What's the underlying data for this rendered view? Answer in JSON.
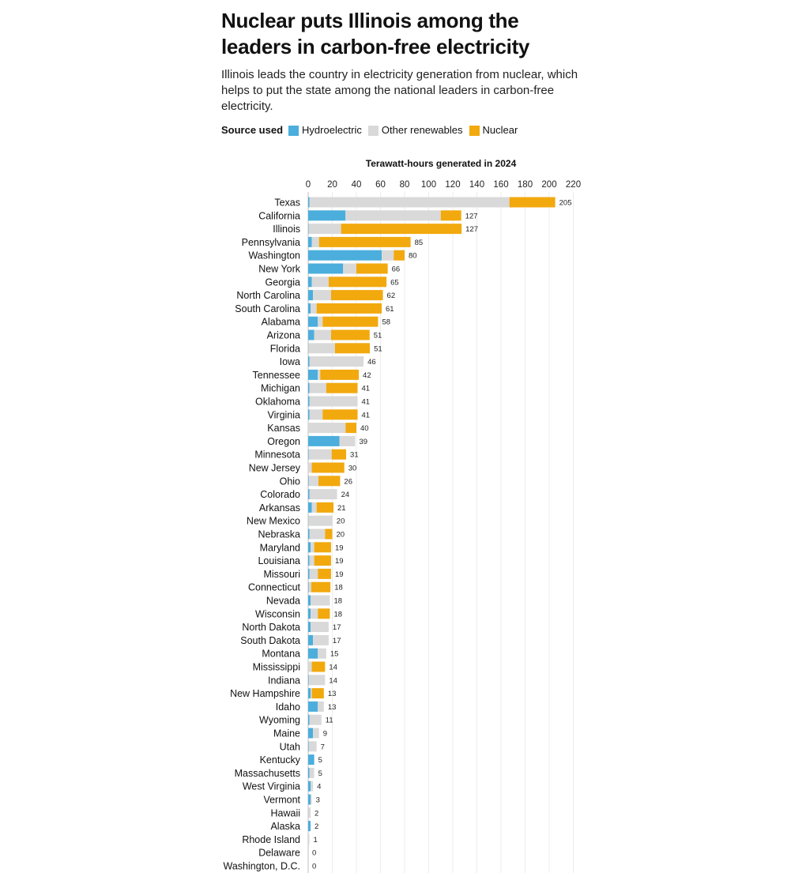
{
  "header": {
    "title_line1": "Nuclear puts Illinois among the",
    "title_line2": "leaders in carbon-free electricity",
    "subtitle": "Illinois leads the country in electricity generation from nuclear, which helps to put the state among the national leaders in carbon-free electricity."
  },
  "legend": {
    "title": "Source used",
    "items": [
      {
        "label": "Hydroelectric",
        "color": "#4BAEDC"
      },
      {
        "label": "Other renewables",
        "color": "#D9D9D9"
      },
      {
        "label": "Nuclear",
        "color": "#F2A90E"
      }
    ]
  },
  "chart_data": {
    "type": "bar",
    "orientation": "horizontal",
    "stacked": true,
    "title": "Nuclear puts Illinois among the leaders in carbon-free electricity",
    "xlabel": "Terawatt-hours generated in 2024",
    "xlim": [
      0,
      220
    ],
    "xticks": [
      0,
      20,
      40,
      60,
      80,
      100,
      120,
      140,
      160,
      180,
      200,
      220
    ],
    "grid": true,
    "legend_placement": "top",
    "categories": [
      "Texas",
      "California",
      "Illinois",
      "Pennsylvania",
      "Washington",
      "New York",
      "Georgia",
      "North Carolina",
      "South Carolina",
      "Alabama",
      "Arizona",
      "Florida",
      "Iowa",
      "Tennessee",
      "Michigan",
      "Oklahoma",
      "Virginia",
      "Kansas",
      "Oregon",
      "Minnesota",
      "New Jersey",
      "Ohio",
      "Colorado",
      "Arkansas",
      "New Mexico",
      "Nebraska",
      "Maryland",
      "Louisiana",
      "Missouri",
      "Connecticut",
      "Nevada",
      "Wisconsin",
      "North Dakota",
      "South Dakota",
      "Montana",
      "Mississippi",
      "Indiana",
      "New Hampshire",
      "Idaho",
      "Wyoming",
      "Maine",
      "Utah",
      "Kentucky",
      "Massachusetts",
      "West Virginia",
      "Vermont",
      "Hawaii",
      "Alaska",
      "Rhode Island",
      "Delaware",
      "Washington, D.C."
    ],
    "series": [
      {
        "name": "Hydroelectric",
        "color": "#4BAEDC",
        "values": [
          1,
          31,
          0.3,
          3,
          61,
          29,
          3,
          4,
          2,
          8,
          5,
          0.2,
          1,
          8,
          1,
          1,
          1,
          0,
          26,
          0.5,
          0,
          0.5,
          1,
          3,
          0.2,
          1,
          2,
          1,
          1,
          0.5,
          2,
          2,
          2,
          4,
          8,
          0,
          0.5,
          2,
          8,
          1,
          4,
          0.5,
          5,
          1,
          2,
          2,
          0.1,
          2,
          0,
          0,
          0
        ]
      },
      {
        "name": "Other renewables",
        "color": "#D9D9D9",
        "values": [
          166,
          79,
          27,
          6,
          10,
          11,
          14,
          15,
          5,
          4,
          14,
          22,
          45,
          2,
          14,
          40,
          11,
          31,
          13,
          19,
          3,
          8,
          23,
          4,
          20,
          13,
          3,
          4,
          7,
          2,
          16,
          6,
          15,
          13,
          7,
          3,
          13.5,
          1,
          5,
          10,
          5,
          6.5,
          0,
          4,
          2,
          1,
          1.9,
          0,
          1,
          0,
          0
        ]
      },
      {
        "name": "Nuclear",
        "color": "#F2A90E",
        "values": [
          38,
          17,
          100,
          76,
          9,
          26,
          48,
          43,
          54,
          46,
          32,
          29,
          0,
          32,
          26,
          0,
          29,
          9,
          0,
          12,
          27,
          18,
          0,
          14,
          0,
          6,
          14,
          14,
          11,
          16,
          0,
          10,
          0,
          0,
          0,
          11,
          0,
          10,
          0,
          0,
          0,
          0,
          0,
          0,
          0,
          0,
          0,
          0,
          0,
          0,
          0
        ]
      }
    ],
    "totals": [
      205,
      127,
      127,
      85,
      80,
      66,
      65,
      62,
      61,
      58,
      51,
      51,
      46,
      42,
      41,
      41,
      41,
      40,
      39,
      31,
      30,
      26,
      24,
      21,
      20,
      20,
      19,
      19,
      19,
      18,
      18,
      18,
      17,
      17,
      15,
      14,
      14,
      13,
      13,
      11,
      9,
      7,
      5,
      5,
      4,
      3,
      2,
      2,
      1,
      0,
      0
    ]
  }
}
